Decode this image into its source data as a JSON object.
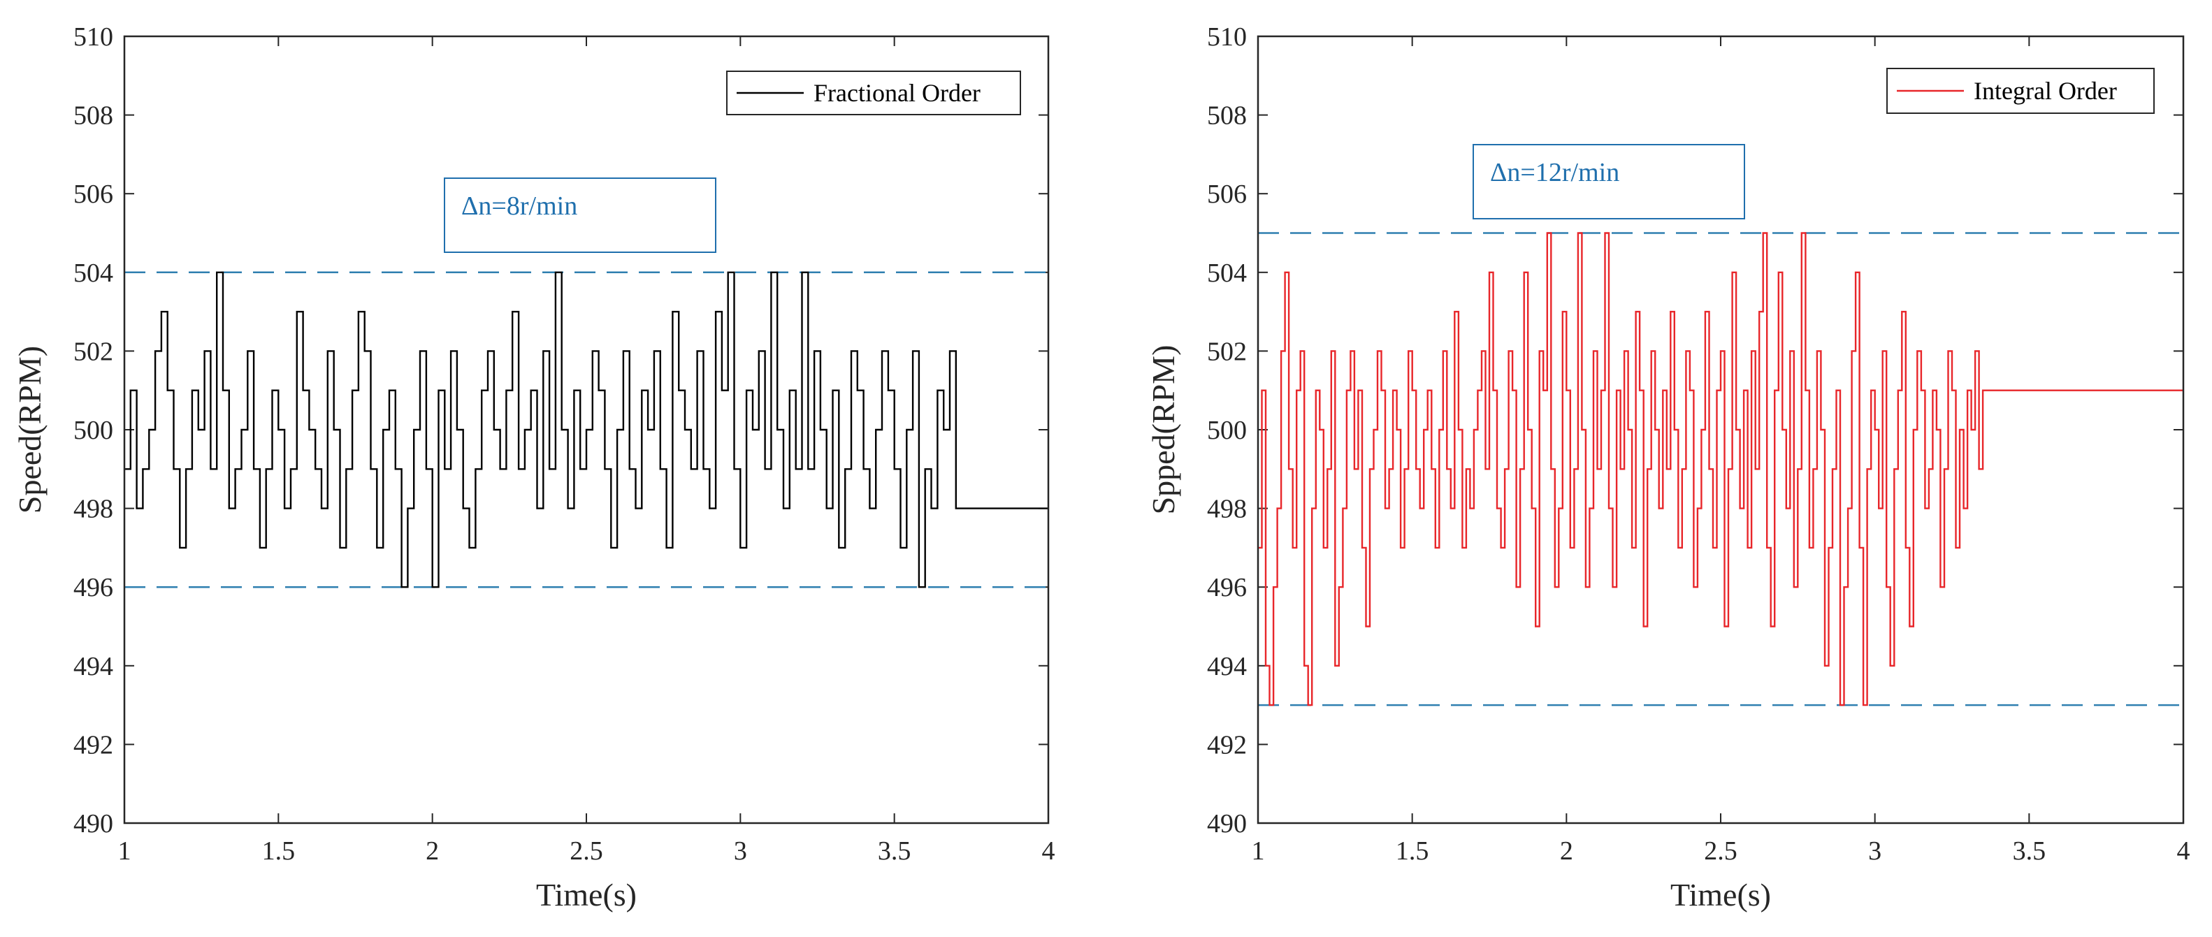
{
  "chart_data": [
    {
      "type": "line",
      "title": "",
      "xlabel": "Time(s)",
      "ylabel": "Speed(RPM)",
      "xlim": [
        1,
        4
      ],
      "ylim": [
        490,
        510
      ],
      "x_ticks": [
        "1",
        "1.5",
        "2",
        "2.5",
        "3",
        "3.5",
        "4"
      ],
      "y_ticks": [
        "490",
        "492",
        "494",
        "496",
        "498",
        "500",
        "502",
        "504",
        "506",
        "508",
        "510"
      ],
      "legend_position": "top-right",
      "series": [
        {
          "name": "Fractional Order",
          "color": "#000000",
          "step": 0.02,
          "x_start": 1.0,
          "values": [
            499,
            501,
            498,
            499,
            500,
            502,
            503,
            501,
            499,
            497,
            499,
            501,
            500,
            502,
            499,
            504,
            501,
            498,
            499,
            500,
            502,
            499,
            497,
            499,
            501,
            500,
            498,
            499,
            503,
            501,
            500,
            499,
            498,
            502,
            500,
            497,
            499,
            501,
            503,
            502,
            499,
            497,
            500,
            501,
            499,
            496,
            498,
            500,
            502,
            499,
            496,
            501,
            499,
            502,
            500,
            498,
            497,
            499,
            501,
            502,
            500,
            499,
            501,
            503,
            499,
            500,
            501,
            498,
            502,
            499,
            504,
            500,
            498,
            501,
            499,
            500,
            502,
            501,
            499,
            497,
            500,
            502,
            499,
            498,
            501,
            500,
            502,
            499,
            497,
            503,
            501,
            500,
            499,
            502,
            499,
            498,
            503,
            501,
            504,
            499,
            497,
            501,
            500,
            502,
            499,
            504,
            500,
            498,
            501,
            499,
            504,
            499,
            502,
            500,
            498,
            501,
            497,
            499,
            502,
            501,
            499,
            498,
            500,
            502,
            501,
            499,
            497,
            500,
            502,
            496,
            499,
            498,
            501,
            500,
            502,
            498
          ]
        }
      ],
      "guide_lines": {
        "upper": 504,
        "lower": 496,
        "color": "#2f7fb0"
      },
      "annotation": {
        "text": "Δn=8r/min",
        "color": "#1f6fad"
      }
    },
    {
      "type": "line",
      "title": "",
      "xlabel": "Time(s)",
      "ylabel": "Spped(RPM)",
      "xlim": [
        1,
        4
      ],
      "ylim": [
        490,
        510
      ],
      "x_ticks": [
        "1",
        "1.5",
        "2",
        "2.5",
        "3",
        "3.5",
        "4"
      ],
      "y_ticks": [
        "490",
        "492",
        "494",
        "496",
        "498",
        "500",
        "502",
        "504",
        "506",
        "508",
        "510"
      ],
      "legend_position": "top-right",
      "series": [
        {
          "name": "Integral Order",
          "color": "#e8262a",
          "step": 0.0125,
          "x_start": 1.0,
          "values": [
            497,
            501,
            494,
            493,
            496,
            498,
            502,
            504,
            499,
            497,
            501,
            502,
            494,
            493,
            498,
            501,
            500,
            497,
            499,
            502,
            494,
            496,
            498,
            501,
            502,
            499,
            501,
            497,
            495,
            499,
            500,
            502,
            501,
            498,
            499,
            501,
            500,
            497,
            499,
            502,
            501,
            499,
            498,
            500,
            501,
            499,
            497,
            500,
            502,
            499,
            498,
            503,
            500,
            497,
            499,
            498,
            500,
            501,
            502,
            499,
            504,
            501,
            498,
            497,
            499,
            502,
            501,
            496,
            499,
            504,
            500,
            498,
            495,
            502,
            501,
            505,
            499,
            496,
            498,
            503,
            501,
            497,
            499,
            505,
            500,
            496,
            498,
            502,
            499,
            501,
            505,
            498,
            496,
            501,
            499,
            502,
            500,
            497,
            503,
            501,
            495,
            499,
            502,
            500,
            498,
            501,
            499,
            503,
            500,
            497,
            499,
            502,
            501,
            496,
            498,
            500,
            503,
            499,
            497,
            501,
            502,
            495,
            499,
            504,
            500,
            498,
            501,
            497,
            502,
            499,
            503,
            505,
            497,
            495,
            501,
            504,
            500,
            498,
            502,
            496,
            499,
            505,
            501,
            497,
            499,
            502,
            500,
            494,
            497,
            499,
            501,
            493,
            496,
            498,
            502,
            504,
            497,
            493,
            499,
            501,
            500,
            498,
            502,
            496,
            494,
            499,
            501,
            503,
            497,
            495,
            500,
            502,
            501,
            498,
            499,
            501,
            500,
            496,
            499,
            502,
            501,
            497,
            500,
            498,
            501,
            500,
            502,
            499,
            501
          ]
        }
      ],
      "guide_lines": {
        "upper": 505,
        "lower": 493,
        "color": "#2f7fb0"
      },
      "annotation": {
        "text": "Δn=12r/min",
        "color": "#1f6fad"
      }
    }
  ]
}
